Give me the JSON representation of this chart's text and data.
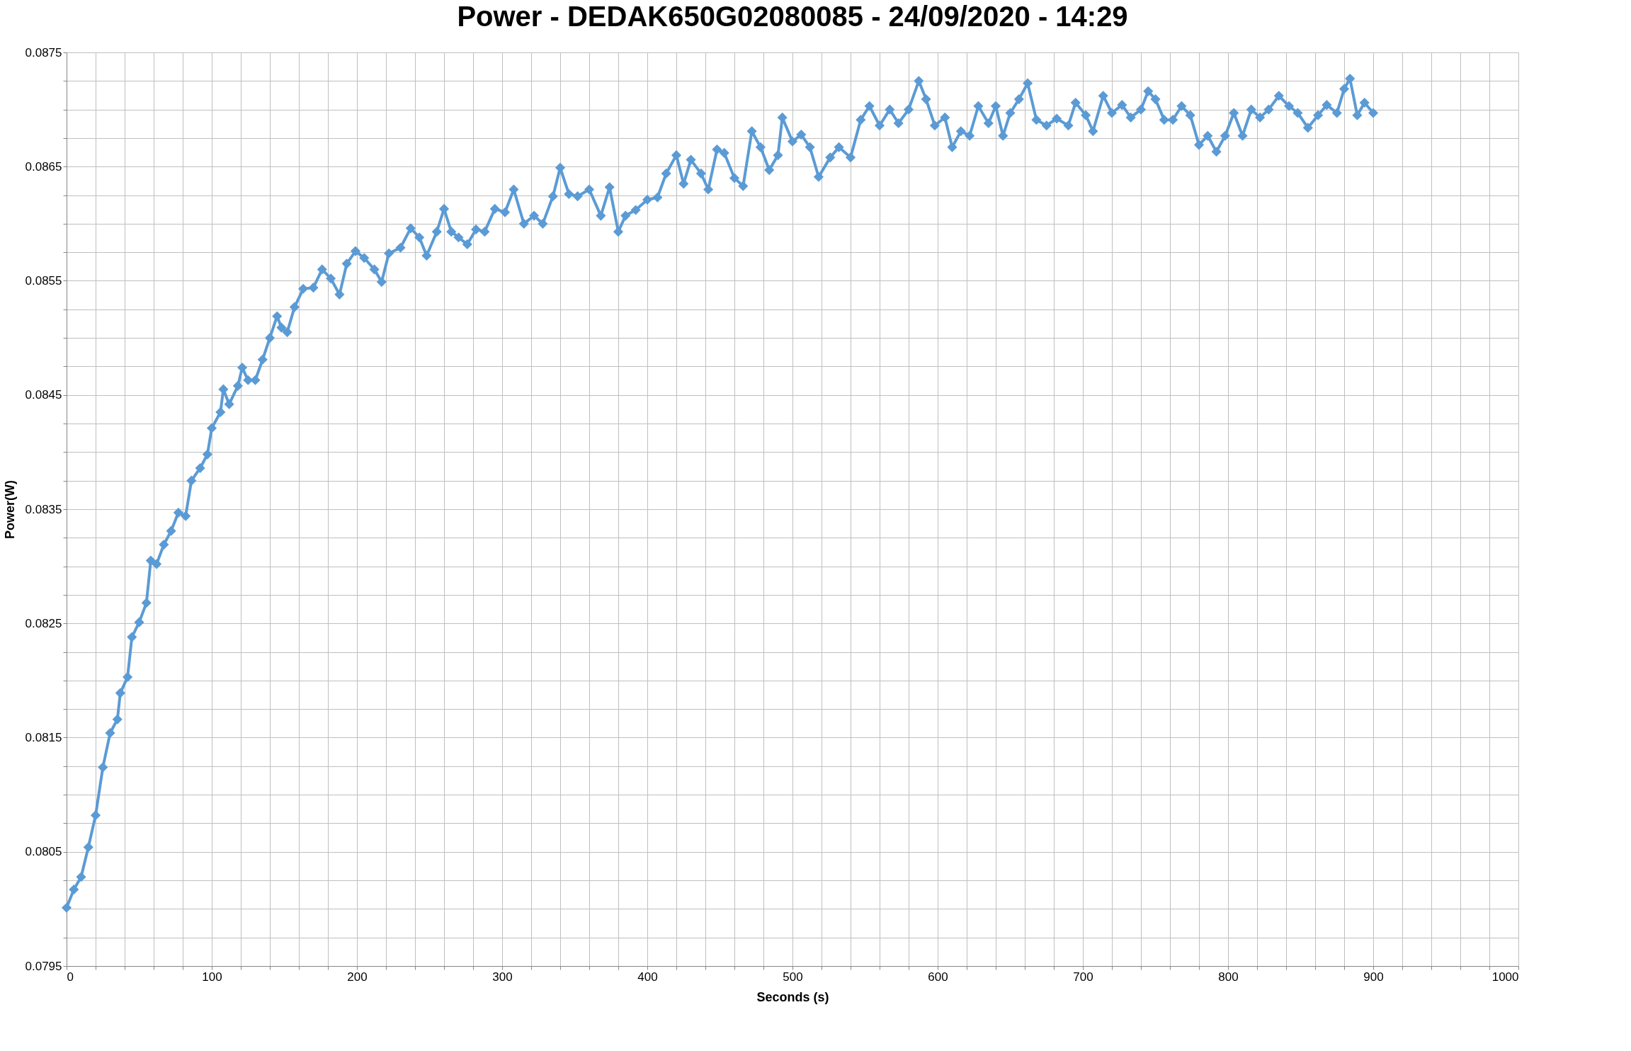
{
  "chart_data": {
    "type": "line",
    "title": "Power - DEDAK650G02080085 - 24/09/2020 - 14:29",
    "xlabel": "Seconds (s)",
    "ylabel": "Power(W)",
    "x": [
      0,
      5,
      10,
      15,
      20,
      25,
      30,
      35,
      37,
      42,
      45,
      50,
      55,
      58,
      62,
      67,
      72,
      77,
      82,
      86,
      92,
      97,
      100,
      106,
      108,
      112,
      118,
      121,
      125,
      130,
      135,
      140,
      145,
      148,
      152,
      157,
      163,
      170,
      176,
      182,
      188,
      193,
      199,
      205,
      212,
      217,
      222,
      230,
      237,
      243,
      248,
      255,
      260,
      265,
      270,
      276,
      282,
      288,
      295,
      302,
      308,
      315,
      322,
      328,
      335,
      340,
      346,
      352,
      360,
      368,
      374,
      380,
      385,
      392,
      400,
      407,
      413,
      420,
      425,
      430,
      437,
      442,
      448,
      453,
      460,
      466,
      472,
      478,
      484,
      490,
      493,
      500,
      506,
      512,
      518,
      526,
      532,
      540,
      547,
      553,
      560,
      567,
      573,
      580,
      587,
      592,
      598,
      605,
      610,
      616,
      622,
      628,
      635,
      640,
      645,
      650,
      656,
      662,
      668,
      675,
      682,
      690,
      695,
      702,
      707,
      714,
      720,
      727,
      733,
      740,
      745,
      750,
      756,
      762,
      768,
      774,
      780,
      786,
      792,
      798,
      804,
      810,
      816,
      822,
      828,
      835,
      842,
      848,
      855,
      862,
      868,
      875,
      880,
      884,
      889,
      894,
      900
    ],
    "series": [
      {
        "color": "#5b9bd5",
        "values": [
          0.08001,
          0.08017,
          0.08028,
          0.08054,
          0.08082,
          0.08124,
          0.08154,
          0.08166,
          0.08189,
          0.08203,
          0.08238,
          0.08251,
          0.08268,
          0.08305,
          0.08302,
          0.08319,
          0.08331,
          0.08347,
          0.08344,
          0.08375,
          0.08386,
          0.08398,
          0.08421,
          0.08435,
          0.08455,
          0.08442,
          0.08458,
          0.08474,
          0.08463,
          0.08463,
          0.08481,
          0.085,
          0.08519,
          0.08509,
          0.08505,
          0.08527,
          0.08543,
          0.08544,
          0.0856,
          0.08552,
          0.08538,
          0.08565,
          0.08576,
          0.0857,
          0.0856,
          0.08549,
          0.08574,
          0.08579,
          0.08596,
          0.08588,
          0.08572,
          0.08593,
          0.08613,
          0.08593,
          0.08588,
          0.08582,
          0.08595,
          0.08593,
          0.08613,
          0.0861,
          0.0863,
          0.086,
          0.08607,
          0.086,
          0.08624,
          0.08649,
          0.08626,
          0.08624,
          0.0863,
          0.08607,
          0.08632,
          0.08593,
          0.08607,
          0.08612,
          0.08621,
          0.08623,
          0.08644,
          0.0866,
          0.08635,
          0.08656,
          0.08644,
          0.0863,
          0.08665,
          0.08662,
          0.0864,
          0.08633,
          0.08681,
          0.08667,
          0.08647,
          0.0866,
          0.08693,
          0.08672,
          0.08678,
          0.08667,
          0.08641,
          0.08658,
          0.08667,
          0.08658,
          0.08691,
          0.08703,
          0.08686,
          0.087,
          0.08688,
          0.087,
          0.08725,
          0.08709,
          0.08686,
          0.08693,
          0.08667,
          0.08681,
          0.08677,
          0.08703,
          0.08688,
          0.08703,
          0.08677,
          0.08697,
          0.08709,
          0.08723,
          0.08691,
          0.08686,
          0.08692,
          0.08686,
          0.08706,
          0.08695,
          0.08681,
          0.08712,
          0.08697,
          0.08704,
          0.08693,
          0.087,
          0.08716,
          0.08709,
          0.08691,
          0.08691,
          0.08703,
          0.08695,
          0.08669,
          0.08677,
          0.08663,
          0.08677,
          0.08697,
          0.08677,
          0.087,
          0.08693,
          0.087,
          0.08712,
          0.08703,
          0.08697,
          0.08684,
          0.08695,
          0.08704,
          0.08697,
          0.08718,
          0.08727,
          0.08695,
          0.08706,
          0.08697
        ]
      }
    ],
    "xlim": [
      0,
      1000
    ],
    "xticks": [
      0,
      {
        "value": 20,
        "label": null
      },
      {
        "value": 40,
        "label": null
      },
      {
        "value": 60,
        "label": null
      },
      {
        "value": 80,
        "label": null
      },
      100,
      {
        "value": 120,
        "label": null
      },
      {
        "value": 140,
        "label": null
      },
      {
        "value": 160,
        "label": null
      },
      {
        "value": 180,
        "label": null
      },
      200,
      {
        "value": 220,
        "label": null
      },
      {
        "value": 240,
        "label": null
      },
      {
        "value": 260,
        "label": null
      },
      {
        "value": 280,
        "label": null
      },
      300,
      {
        "value": 320,
        "label": null
      },
      {
        "value": 340,
        "label": null
      },
      {
        "value": 360,
        "label": null
      },
      {
        "value": 380,
        "label": null
      },
      400,
      {
        "value": 420,
        "label": null
      },
      {
        "value": 440,
        "label": null
      },
      {
        "value": 460,
        "label": null
      },
      {
        "value": 480,
        "label": null
      },
      500,
      {
        "value": 520,
        "label": null
      },
      {
        "value": 540,
        "label": null
      },
      {
        "value": 560,
        "label": null
      },
      {
        "value": 580,
        "label": null
      },
      600,
      {
        "value": 620,
        "label": null
      },
      {
        "value": 640,
        "label": null
      },
      {
        "value": 660,
        "label": null
      },
      {
        "value": 680,
        "label": null
      },
      700,
      {
        "value": 720,
        "label": null
      },
      {
        "value": 740,
        "label": null
      },
      {
        "value": 760,
        "label": null
      },
      {
        "value": 780,
        "label": null
      },
      800,
      {
        "value": 820,
        "label": null
      },
      {
        "value": 840,
        "label": null
      },
      {
        "value": 860,
        "label": null
      },
      {
        "value": 880,
        "label": null
      },
      900,
      {
        "value": 920,
        "label": null
      },
      {
        "value": 940,
        "label": null
      },
      {
        "value": 960,
        "label": null
      },
      {
        "value": 980,
        "label": null
      },
      1000
    ],
    "ylim": [
      0.0795,
      0.0875
    ],
    "yticks": [
      0.0795,
      {
        "value": 0.07975,
        "label": null
      },
      {
        "value": 0.08,
        "label": null
      },
      {
        "value": 0.08025,
        "label": null
      },
      0.0805,
      {
        "value": 0.08075,
        "label": null
      },
      {
        "value": 0.081,
        "label": null
      },
      {
        "value": 0.08125,
        "label": null
      },
      0.0815,
      {
        "value": 0.08175,
        "label": null
      },
      {
        "value": 0.082,
        "label": null
      },
      {
        "value": 0.08225,
        "label": null
      },
      0.0825,
      {
        "value": 0.08275,
        "label": null
      },
      {
        "value": 0.083,
        "label": null
      },
      {
        "value": 0.08325,
        "label": null
      },
      0.0835,
      {
        "value": 0.08375,
        "label": null
      },
      {
        "value": 0.084,
        "label": null
      },
      {
        "value": 0.08425,
        "label": null
      },
      0.0845,
      {
        "value": 0.08475,
        "label": null
      },
      {
        "value": 0.085,
        "label": null
      },
      {
        "value": 0.08525,
        "label": null
      },
      0.0855,
      {
        "value": 0.08575,
        "label": null
      },
      {
        "value": 0.086,
        "label": null
      },
      {
        "value": 0.08625,
        "label": null
      },
      0.0865,
      {
        "value": 0.08675,
        "label": null
      },
      {
        "value": 0.087,
        "label": null
      },
      {
        "value": 0.08725,
        "label": null
      },
      0.0875
    ],
    "grid": true,
    "marker": "diamond",
    "line_style": "solid"
  }
}
